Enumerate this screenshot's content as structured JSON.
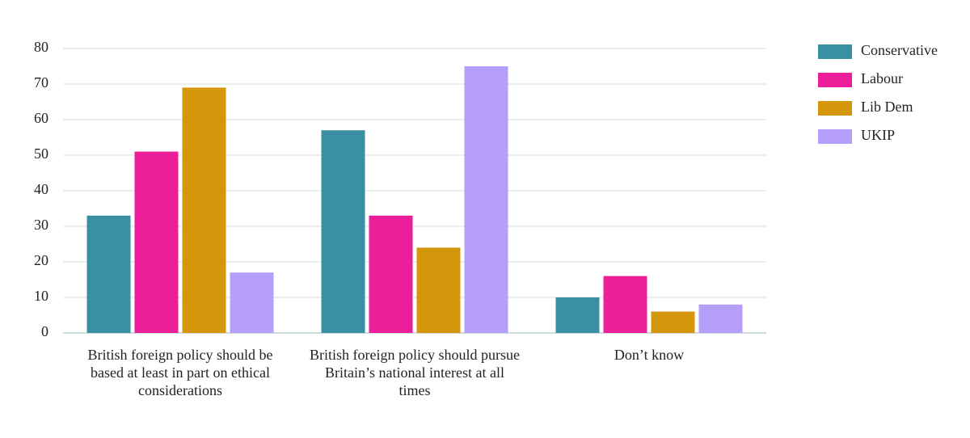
{
  "chart_data": {
    "type": "bar",
    "categories": [
      "British foreign policy should be based at least in part on ethical considerations",
      "British foreign policy should pursue Britain’s national interest at all times",
      "Don’t know"
    ],
    "series": [
      {
        "name": "Conservative",
        "color": "#3a8fa3",
        "values": [
          33,
          57,
          10
        ]
      },
      {
        "name": "Labour",
        "color": "#ec1e9a",
        "values": [
          51,
          33,
          16
        ]
      },
      {
        "name": "Lib Dem",
        "color": "#d4960a",
        "values": [
          69,
          24,
          6
        ]
      },
      {
        "name": "UKIP",
        "color": "#b59ffb",
        "values": [
          17,
          75,
          8
        ]
      }
    ],
    "ylim": [
      0,
      80
    ],
    "yticks": [
      0,
      10,
      20,
      30,
      40,
      50,
      60,
      70,
      80
    ],
    "grid": true,
    "legend": "right"
  }
}
